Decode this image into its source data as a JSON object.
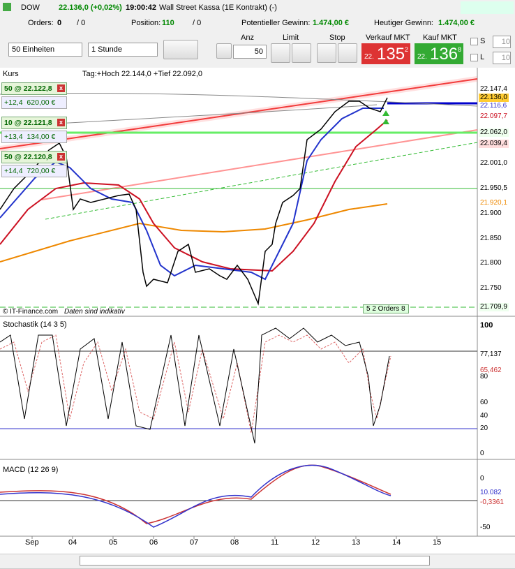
{
  "header": {
    "symbol": "DOW",
    "price": "22.136,0 (+0,02%)",
    "time": "19:00:42",
    "instrument": "Wall Street Kassa (1E Kontrakt) (-)"
  },
  "status": {
    "orders_label": "Orders:",
    "orders": "0",
    "orders2": "/ 0",
    "position_label": "Position:",
    "position": "110",
    "position2": "/ 0",
    "pot_label": "Potentieller Gewinn:",
    "pot": "1.474,00 €",
    "today_label": "Heutiger Gewinn:",
    "today": "1.474,00 €"
  },
  "toolbar": {
    "units": "50 Einheiten",
    "period": "1 Stunde",
    "anz_label": "Anz",
    "anz": "50",
    "limit": "Limit",
    "stop": "Stop",
    "sell_label": "Verkauf MKT",
    "sell_small": "22.",
    "sell_big": "135",
    "sell_frac": "2",
    "buy_label": "Kauf MKT",
    "buy_small": "22.",
    "buy_big": "136",
    "buy_frac": "8",
    "s_label": "S",
    "s_value": "10",
    "l_label": "L",
    "l_value": "10"
  },
  "price_panel": {
    "title": "Kurs",
    "info": "Tag:+Hoch 22.144,0 +Tief 22.092,0",
    "footer": "© IT-Finance.com",
    "footer2": "Daten sind indikativ",
    "orders_tag": "5 2 Orders 8",
    "positions": [
      {
        "head": "50 @ 22.122,8",
        "pts": "+12,4",
        "eur": "620,00 €"
      },
      {
        "head": "10 @ 22.121,8",
        "pts": "+13,4",
        "eur": "134,00 €"
      },
      {
        "head": "50 @ 22.120,8",
        "pts": "+14,4",
        "eur": "720,00 €"
      }
    ],
    "axis": [
      "22.147,4",
      "22.136,0",
      "22.116,6",
      "22.097,7",
      "22.062,0",
      "22.039,4",
      "22.001,0",
      "21.950,5",
      "21.920,1",
      "21.900",
      "21.850",
      "21.800",
      "21.750",
      "21.709,9"
    ]
  },
  "stoch_panel": {
    "title": "Stochastik (14 3 5)",
    "axis": [
      "100",
      "80",
      "60",
      "40",
      "20",
      "0"
    ],
    "k": "77,137",
    "d": "65,462"
  },
  "macd_panel": {
    "title": "MACD (12 26 9)",
    "axis": [
      "0",
      "-50"
    ],
    "v1": "10.082",
    "v2": "-0,3361"
  },
  "xaxis": [
    "Sep",
    "04",
    "05",
    "06",
    "07",
    "08",
    "11",
    "12",
    "13",
    "14",
    "15"
  ]
}
